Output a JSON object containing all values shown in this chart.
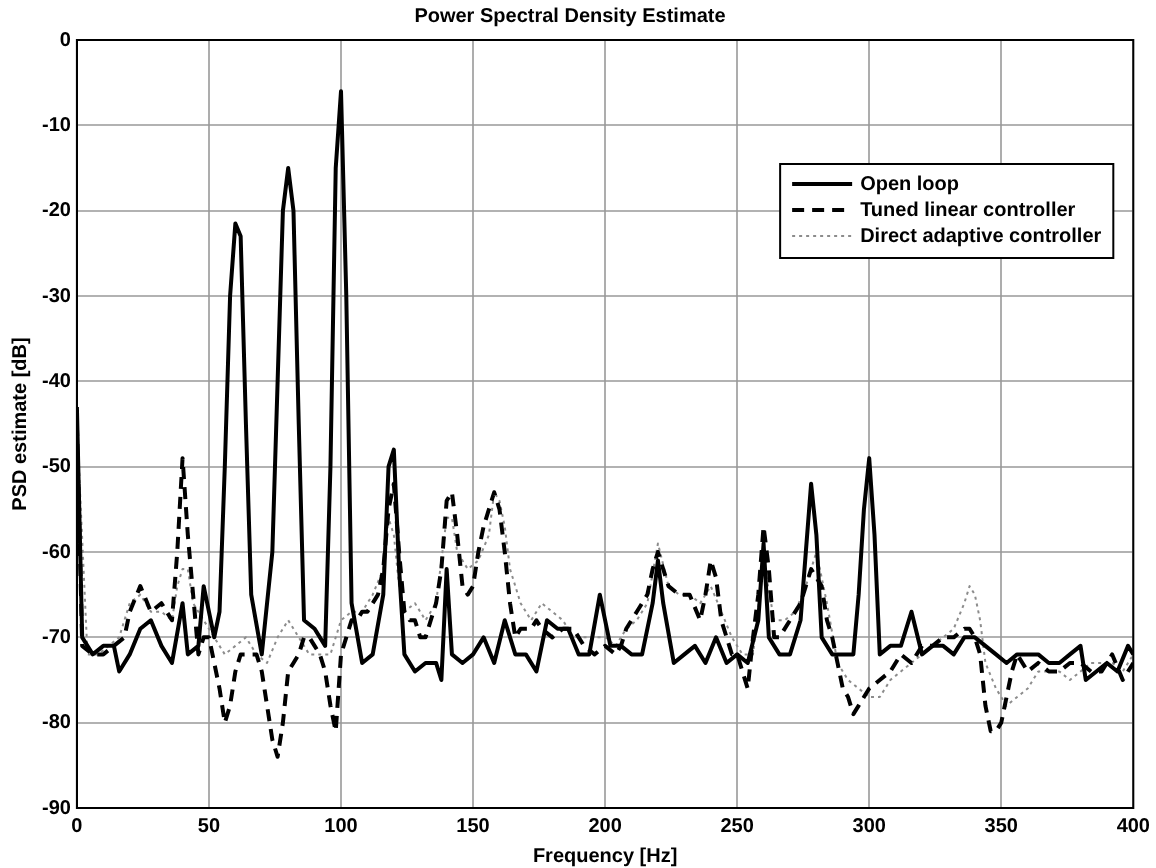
{
  "chart_data": {
    "type": "line",
    "title": "Power Spectral Density Estimate",
    "xlabel": "Frequency [Hz]",
    "ylabel": "PSD estimate [dB]",
    "xlim": [
      0,
      400
    ],
    "xticks": [
      0,
      50,
      100,
      150,
      200,
      250,
      300,
      350,
      400
    ],
    "ylim": [
      -90,
      0
    ],
    "yticks": [
      -90,
      -80,
      -70,
      -60,
      -50,
      -40,
      -30,
      -20,
      -10,
      0
    ],
    "grid": true,
    "legend": "top right",
    "marker": "none",
    "series": [
      {
        "name": "Open loop",
        "color": "#000000",
        "line_style": "solid",
        "x": [
          0,
          2,
          6,
          10,
          14,
          16,
          20,
          24,
          28,
          32,
          36,
          40,
          42,
          46,
          48,
          52,
          54,
          56,
          58,
          60,
          62,
          64,
          66,
          70,
          74,
          76,
          78,
          80,
          82,
          84,
          86,
          90,
          94,
          96,
          98,
          100,
          102,
          104,
          108,
          112,
          116,
          118,
          120,
          122,
          124,
          128,
          132,
          136,
          138,
          140,
          142,
          146,
          150,
          154,
          158,
          162,
          166,
          170,
          174,
          178,
          182,
          186,
          190,
          194,
          198,
          202,
          206,
          210,
          214,
          218,
          220,
          222,
          226,
          230,
          234,
          238,
          242,
          246,
          250,
          254,
          258,
          260,
          262,
          266,
          270,
          274,
          276,
          278,
          280,
          282,
          286,
          290,
          294,
          296,
          298,
          300,
          302,
          304,
          308,
          312,
          316,
          320,
          324,
          328,
          332,
          336,
          340,
          344,
          348,
          352,
          356,
          360,
          364,
          368,
          372,
          376,
          380,
          382,
          386,
          390,
          394,
          398,
          400
        ],
        "values": [
          -43,
          -70,
          -72,
          -71,
          -71,
          -74,
          -72,
          -69,
          -68,
          -71,
          -73,
          -66,
          -72,
          -71,
          -64,
          -70,
          -67,
          -50,
          -30,
          -21.5,
          -23,
          -45,
          -65,
          -72,
          -60,
          -40,
          -20,
          -15,
          -20,
          -45,
          -68,
          -69,
          -71,
          -50,
          -15,
          -6,
          -30,
          -66,
          -73,
          -72,
          -65,
          -50,
          -48,
          -62,
          -72,
          -74,
          -73,
          -73,
          -75,
          -62,
          -72,
          -73,
          -72,
          -70,
          -73,
          -68,
          -72,
          -72,
          -74,
          -68,
          -69,
          -69,
          -72,
          -72,
          -65,
          -71,
          -71,
          -72,
          -72,
          -66,
          -61,
          -66,
          -73,
          -72,
          -71,
          -73,
          -70,
          -73,
          -72,
          -73,
          -68,
          -59,
          -70,
          -72,
          -72,
          -68,
          -60,
          -52,
          -58,
          -70,
          -72,
          -72,
          -72,
          -65,
          -55,
          -49,
          -58,
          -72,
          -71,
          -71,
          -67,
          -72,
          -71,
          -71,
          -72,
          -70,
          -70,
          -71,
          -72,
          -73,
          -72,
          -72,
          -72,
          -73,
          -73,
          -72,
          -71,
          -75,
          -74,
          -73,
          -74,
          -71,
          -72
        ]
      },
      {
        "name": "Tuned linear controller",
        "color": "#000000",
        "line_style": "dashed",
        "x": [
          0,
          2,
          6,
          10,
          14,
          18,
          20,
          24,
          28,
          32,
          36,
          38,
          40,
          42,
          44,
          46,
          48,
          50,
          52,
          54,
          56,
          58,
          60,
          62,
          64,
          66,
          68,
          70,
          72,
          74,
          76,
          78,
          80,
          82,
          84,
          86,
          88,
          90,
          92,
          94,
          96,
          98,
          100,
          102,
          104,
          106,
          108,
          110,
          112,
          114,
          116,
          118,
          120,
          122,
          124,
          126,
          128,
          130,
          132,
          134,
          136,
          138,
          140,
          142,
          144,
          146,
          148,
          150,
          152,
          154,
          156,
          158,
          160,
          162,
          164,
          166,
          168,
          170,
          172,
          174,
          176,
          180,
          184,
          188,
          190,
          192,
          196,
          200,
          204,
          206,
          208,
          212,
          216,
          218,
          220,
          222,
          224,
          228,
          232,
          236,
          238,
          240,
          242,
          244,
          246,
          248,
          250,
          252,
          254,
          256,
          258,
          260,
          262,
          264,
          266,
          270,
          274,
          278,
          280,
          282,
          284,
          286,
          288,
          290,
          292,
          294,
          296,
          298,
          300,
          304,
          308,
          312,
          316,
          320,
          324,
          328,
          332,
          336,
          338,
          340,
          342,
          344,
          346,
          348,
          350,
          352,
          354,
          356,
          360,
          364,
          368,
          372,
          376,
          380,
          384,
          388,
          392,
          396,
          400
        ],
        "values": [
          -45,
          -71,
          -72,
          -72,
          -71,
          -70,
          -67,
          -64,
          -67,
          -66,
          -68,
          -60,
          -49,
          -58,
          -65,
          -72,
          -70,
          -70,
          -73,
          -76,
          -80,
          -78,
          -74,
          -72,
          -72,
          -72,
          -72,
          -74,
          -78,
          -82,
          -84,
          -80,
          -74,
          -73,
          -72,
          -70,
          -70,
          -71,
          -72,
          -74,
          -78,
          -81,
          -72,
          -70,
          -68,
          -68,
          -67,
          -67,
          -66,
          -65,
          -62,
          -55,
          -52,
          -60,
          -67,
          -68,
          -68,
          -70,
          -70,
          -68,
          -66,
          -62,
          -54,
          -53,
          -58,
          -64,
          -65,
          -64,
          -60,
          -57,
          -55,
          -53,
          -55,
          -60,
          -66,
          -70,
          -69,
          -69,
          -69,
          -68,
          -69,
          -70,
          -69,
          -69,
          -70,
          -71,
          -72,
          -71,
          -72,
          -71,
          -69,
          -67,
          -65,
          -62,
          -60,
          -62,
          -64,
          -65,
          -65,
          -68,
          -65,
          -61,
          -63,
          -68,
          -70,
          -72,
          -72,
          -74,
          -76,
          -70,
          -65,
          -57,
          -62,
          -70,
          -70,
          -68,
          -66,
          -62,
          -63,
          -64,
          -68,
          -70,
          -73,
          -76,
          -77,
          -79,
          -78,
          -77,
          -76,
          -75,
          -74,
          -72,
          -73,
          -71,
          -71,
          -70,
          -70,
          -69,
          -69,
          -70,
          -72,
          -78,
          -81,
          -81,
          -80,
          -77,
          -74,
          -72,
          -74,
          -73,
          -74,
          -74,
          -73,
          -73,
          -74,
          -74,
          -72,
          -75,
          -73
        ]
      },
      {
        "name": "Direct adaptive controller",
        "color": "#8c8c8c",
        "line_style": "dotted",
        "x": [
          0,
          4,
          8,
          12,
          16,
          20,
          24,
          28,
          32,
          36,
          38,
          40,
          42,
          44,
          48,
          52,
          56,
          60,
          64,
          68,
          72,
          76,
          80,
          84,
          88,
          92,
          96,
          100,
          104,
          108,
          112,
          116,
          118,
          120,
          122,
          124,
          128,
          132,
          136,
          140,
          142,
          144,
          148,
          152,
          156,
          158,
          160,
          162,
          164,
          168,
          172,
          176,
          180,
          184,
          188,
          192,
          196,
          200,
          204,
          208,
          212,
          216,
          220,
          224,
          228,
          232,
          236,
          240,
          244,
          248,
          252,
          256,
          260,
          264,
          268,
          272,
          276,
          280,
          284,
          288,
          292,
          296,
          300,
          304,
          308,
          312,
          316,
          320,
          324,
          328,
          332,
          336,
          338,
          340,
          342,
          344,
          348,
          352,
          356,
          360,
          364,
          368,
          372,
          376,
          380,
          384,
          388,
          392,
          396,
          400
        ],
        "values": [
          -45,
          -72,
          -72,
          -71,
          -70,
          -66,
          -65,
          -67,
          -67,
          -68,
          -64,
          -62,
          -62,
          -66,
          -68,
          -70,
          -72,
          -71,
          -70,
          -72,
          -73,
          -70,
          -68,
          -70,
          -72,
          -72,
          -72,
          -68,
          -67,
          -67,
          -65,
          -62,
          -56,
          -58,
          -64,
          -67,
          -66,
          -68,
          -66,
          -56,
          -56,
          -60,
          -62,
          -61,
          -58,
          -53,
          -54,
          -57,
          -62,
          -66,
          -68,
          -66,
          -67,
          -68,
          -70,
          -70,
          -70,
          -70,
          -71,
          -69,
          -68,
          -66,
          -59,
          -64,
          -65,
          -65,
          -66,
          -64,
          -67,
          -70,
          -72,
          -72,
          -61,
          -68,
          -68,
          -67,
          -64,
          -60,
          -66,
          -73,
          -75,
          -76,
          -77,
          -77,
          -75,
          -74,
          -73,
          -72,
          -71,
          -70,
          -69,
          -66,
          -64,
          -65,
          -68,
          -73,
          -76,
          -78,
          -77,
          -76,
          -74,
          -74,
          -74,
          -75,
          -74,
          -73,
          -73,
          -73,
          -74,
          -72
        ]
      }
    ]
  }
}
